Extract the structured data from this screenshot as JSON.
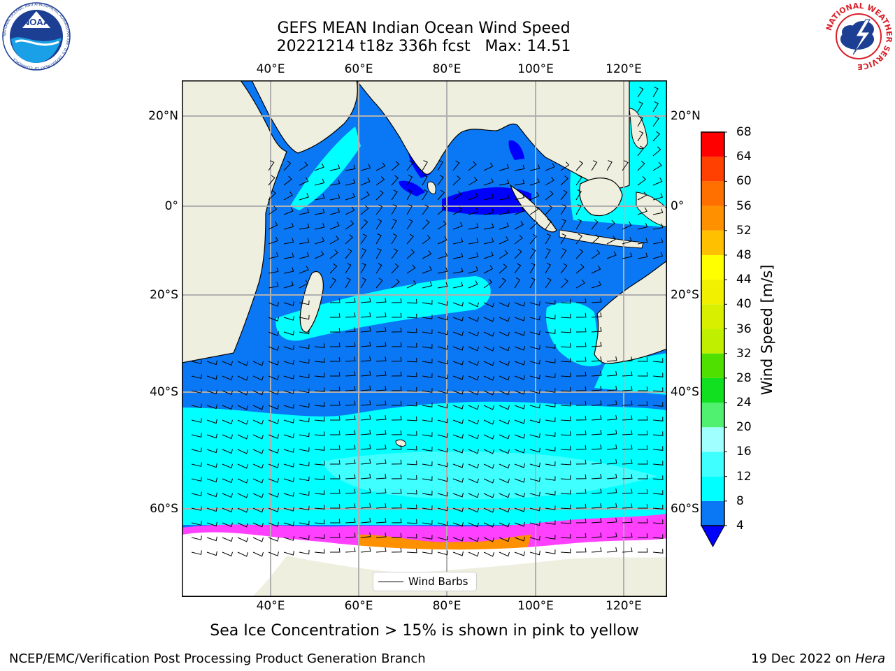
{
  "header": {
    "title_line1": "GEFS MEAN Indian Ocean Wind Speed",
    "title_line2": "20221214 t18z 336h fcst   Max: 14.51"
  },
  "logos": {
    "left": {
      "text": "NOAA",
      "ring_text": "NATIONAL OCEANIC AND ATMOSPHERIC ADMINISTRATION · U.S. DEPARTMENT OF COMMERCE"
    },
    "right": {
      "ring_text": "NATIONAL WEATHER SERVICE"
    }
  },
  "map": {
    "lon_labels": [
      "40°E",
      "60°E",
      "80°E",
      "100°E",
      "120°E"
    ],
    "lat_labels": [
      "20°N",
      "0°",
      "20°S",
      "40°S",
      "60°S"
    ],
    "colors": {
      "land": "#efefdf",
      "ocean_4_8": "#0a78f5",
      "ocean_below_4": "#0000ff",
      "ocean_8_12": "#00ffff",
      "ocean_12_16": "#40ffff",
      "sea_ice": "#ff40ff",
      "ice_shelf": "#ffffff",
      "grid": "#b0b0b0"
    }
  },
  "colorbar": {
    "title": "Wind Speed [m/s]",
    "bands": [
      {
        "min": 4,
        "max": 8,
        "color": "#0a78f5"
      },
      {
        "min": 8,
        "max": 12,
        "color": "#00ffff"
      },
      {
        "min": 12,
        "max": 16,
        "color": "#40ffff"
      },
      {
        "min": 16,
        "max": 20,
        "color": "#a0ffff"
      },
      {
        "min": 20,
        "max": 24,
        "color": "#50f070"
      },
      {
        "min": 24,
        "max": 28,
        "color": "#10e020"
      },
      {
        "min": 28,
        "max": 32,
        "color": "#50e000"
      },
      {
        "min": 32,
        "max": 36,
        "color": "#c0f000"
      },
      {
        "min": 36,
        "max": 40,
        "color": "#d8f000"
      },
      {
        "min": 40,
        "max": 44,
        "color": "#f0f000"
      },
      {
        "min": 44,
        "max": 48,
        "color": "#ffff00"
      },
      {
        "min": 48,
        "max": 52,
        "color": "#ffc000"
      },
      {
        "min": 52,
        "max": 56,
        "color": "#ff9000"
      },
      {
        "min": 56,
        "max": 60,
        "color": "#ff7000"
      },
      {
        "min": 60,
        "max": 64,
        "color": "#ff4000"
      },
      {
        "min": 64,
        "max": 68,
        "color": "#ff0000"
      }
    ],
    "under_color": "#0000ff",
    "tick_labels": [
      "4",
      "8",
      "12",
      "16",
      "20",
      "24",
      "28",
      "32",
      "36",
      "40",
      "44",
      "48",
      "52",
      "56",
      "60",
      "64",
      "68"
    ]
  },
  "legend": {
    "label": "Wind Barbs"
  },
  "caption": "Sea Ice Concentration > 15% is shown in pink to yellow",
  "footer": {
    "left": "NCEP/EMC/Verification Post Processing Product Generation Branch",
    "right_prefix": "19 Dec 2022 on ",
    "right_machine": "Hera"
  }
}
